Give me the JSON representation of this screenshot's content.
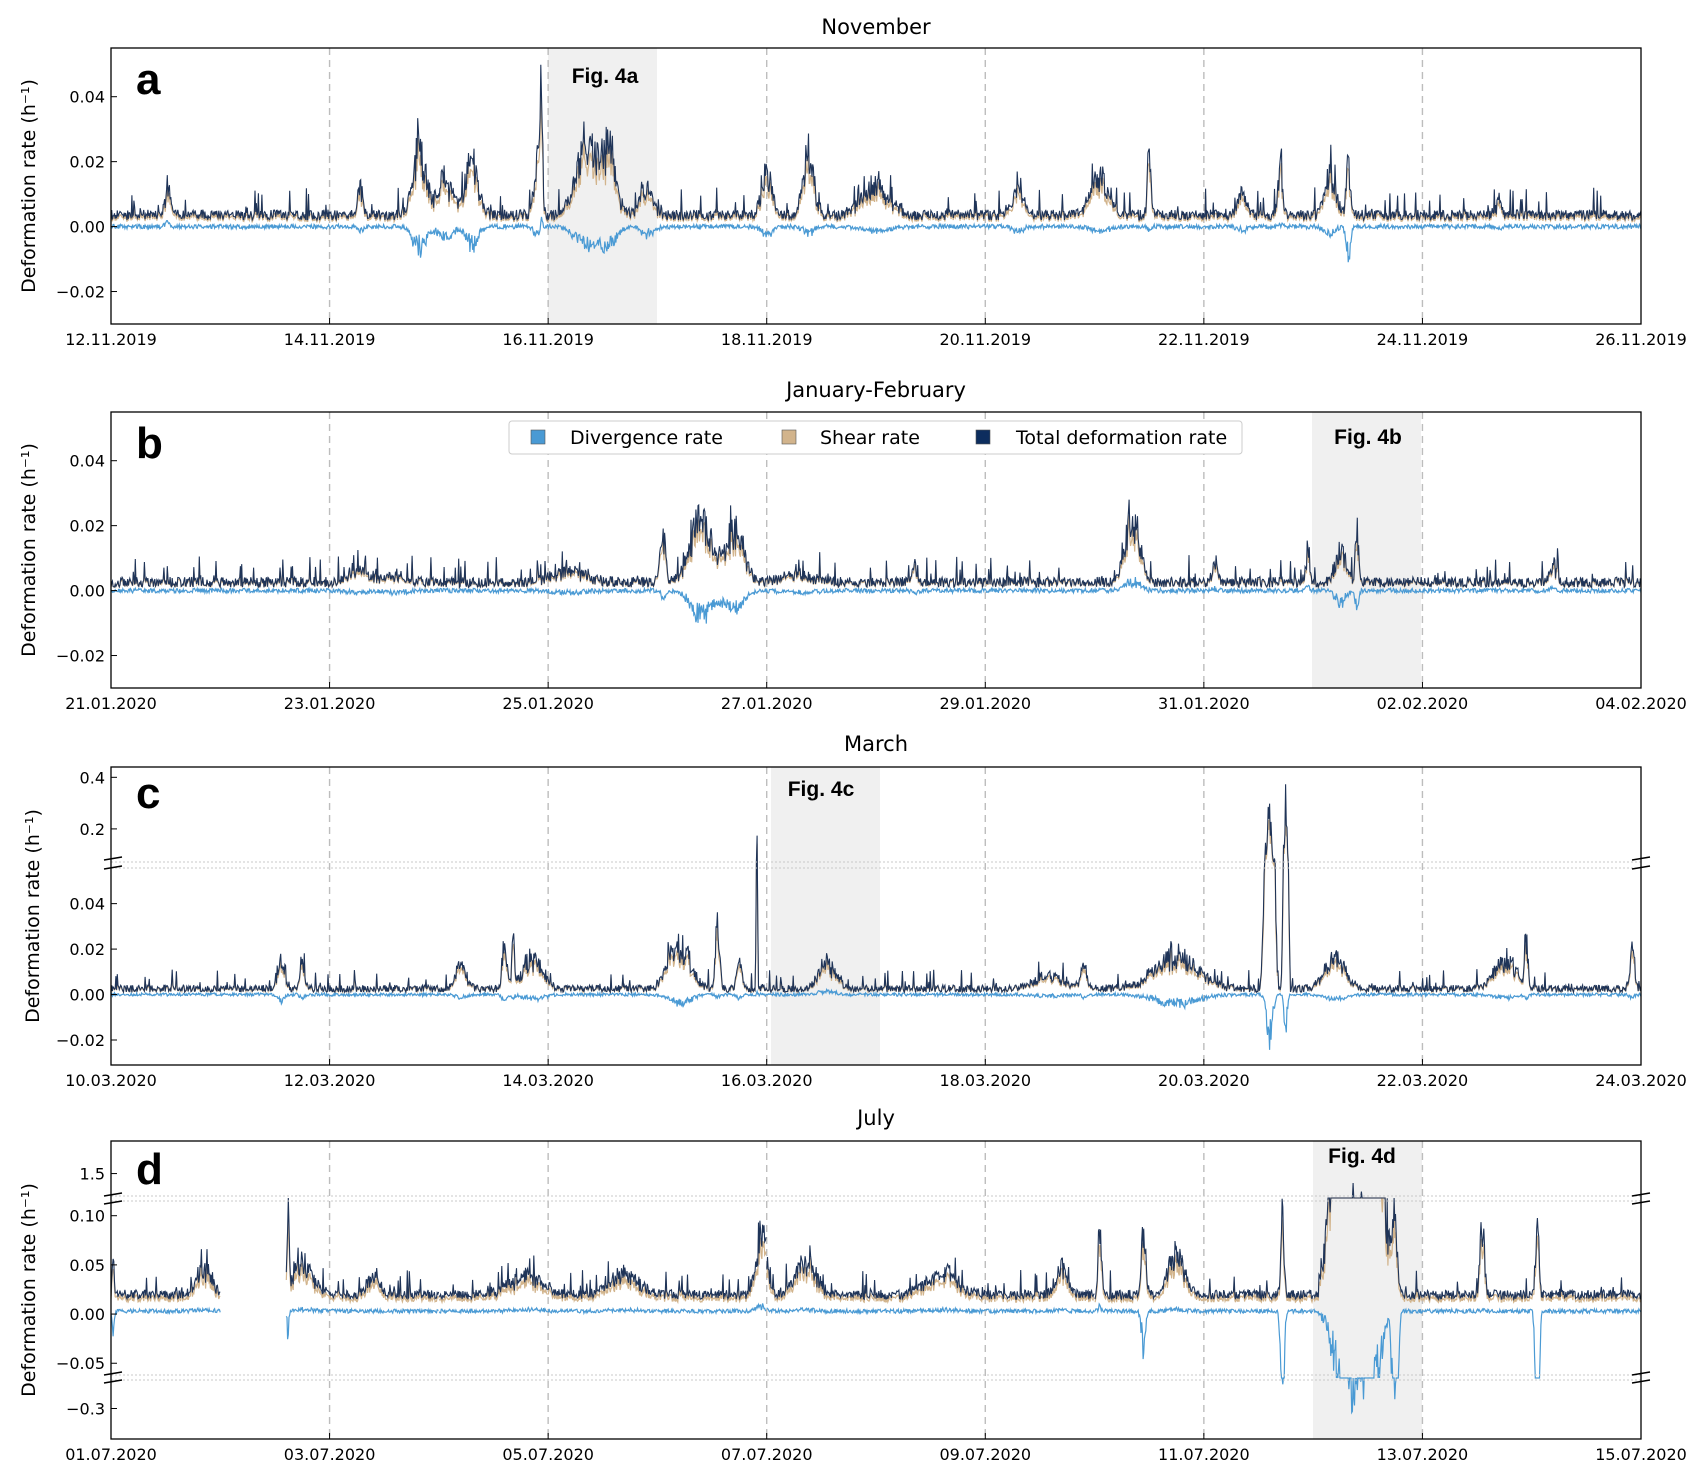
{
  "legend": {
    "items": [
      {
        "label": "Divergence rate",
        "color": "#4a9ad4"
      },
      {
        "label": "Shear rate",
        "color": "#d2b48c"
      },
      {
        "label": "Total deformation rate",
        "color": "#0d2d5e"
      }
    ]
  },
  "colors": {
    "divergence": "#4a9ad4",
    "shear": "#d2b48c",
    "total": "#1f3458",
    "grid": "#bdbdbd",
    "highlight": "#f0f0f0"
  },
  "chart_data": [
    {
      "type": "line",
      "panel_letter": "a",
      "title": "November",
      "ylabel": "Deformation rate (h⁻¹)",
      "ylim": [
        -0.03,
        0.055
      ],
      "x_range": [
        "12.11.2019",
        "26.11.2019"
      ],
      "x_ticks": [
        "12.11.2019",
        "14.11.2019",
        "16.11.2019",
        "18.11.2019",
        "20.11.2019",
        "22.11.2019",
        "24.11.2019",
        "26.11.2019"
      ],
      "y_ticks": [
        {
          "value": 0.04,
          "label": "0.04"
        },
        {
          "value": 0.02,
          "label": "0.02"
        },
        {
          "value": 0.0,
          "label": "0.00"
        },
        {
          "value": -0.02,
          "label": "−0.02"
        }
      ],
      "highlight": {
        "start": 4.0,
        "end": 5.0,
        "label": "Fig. 4a"
      },
      "baseline": {
        "div": 0.0,
        "shear": 0.0015,
        "total": 0.002
      },
      "segments": [],
      "events": [
        {
          "t": 0.52,
          "w": 0.05,
          "total": 0.014,
          "div": 0.002
        },
        {
          "t": 2.28,
          "w": 0.05,
          "total": 0.012,
          "div": -0.002
        },
        {
          "t": 2.82,
          "w": 0.12,
          "total": 0.028,
          "div": -0.01
        },
        {
          "t": 3.05,
          "w": 0.15,
          "total": 0.016,
          "div": -0.005
        },
        {
          "t": 3.3,
          "w": 0.12,
          "total": 0.024,
          "div": -0.008
        },
        {
          "t": 3.9,
          "w": 0.06,
          "total": 0.026,
          "div": -0.004
        },
        {
          "t": 3.94,
          "w": 0.02,
          "total": 0.054,
          "div": 0.004
        },
        {
          "t": 4.35,
          "w": 0.2,
          "total": 0.028,
          "div": -0.008
        },
        {
          "t": 4.55,
          "w": 0.15,
          "total": 0.026,
          "div": -0.009
        },
        {
          "t": 4.9,
          "w": 0.12,
          "total": 0.014,
          "div": -0.004
        },
        {
          "t": 6.0,
          "w": 0.1,
          "total": 0.018,
          "div": -0.004
        },
        {
          "t": 6.38,
          "w": 0.1,
          "total": 0.027,
          "div": -0.003
        },
        {
          "t": 7.0,
          "w": 0.25,
          "total": 0.014,
          "div": -0.002
        },
        {
          "t": 8.3,
          "w": 0.1,
          "total": 0.014,
          "div": -0.002
        },
        {
          "t": 9.05,
          "w": 0.18,
          "total": 0.018,
          "div": -0.002
        },
        {
          "t": 9.5,
          "w": 0.03,
          "total": 0.03,
          "div": -0.002
        },
        {
          "t": 10.35,
          "w": 0.08,
          "total": 0.012,
          "div": -0.002
        },
        {
          "t": 10.7,
          "w": 0.04,
          "total": 0.024,
          "div": 0.001
        },
        {
          "t": 11.15,
          "w": 0.1,
          "total": 0.018,
          "div": -0.003
        },
        {
          "t": 11.32,
          "w": 0.04,
          "total": 0.022,
          "div": -0.013
        },
        {
          "t": 12.7,
          "w": 0.04,
          "total": 0.01,
          "div": -0.001
        }
      ]
    },
    {
      "type": "line",
      "panel_letter": "b",
      "title": "January-February",
      "ylabel": "Deformation rate (h⁻¹)",
      "ylim": [
        -0.03,
        0.055
      ],
      "x_range": [
        "21.01.2020",
        "04.02.2020"
      ],
      "x_ticks": [
        "21.01.2020",
        "23.01.2020",
        "25.01.2020",
        "27.01.2020",
        "29.01.2020",
        "31.01.2020",
        "02.02.2020",
        "04.02.2020"
      ],
      "y_ticks": [
        {
          "value": 0.04,
          "label": "0.04"
        },
        {
          "value": 0.02,
          "label": "0.02"
        },
        {
          "value": 0.0,
          "label": "0.00"
        },
        {
          "value": -0.02,
          "label": "−0.02"
        }
      ],
      "highlight": {
        "start": 11.0,
        "end": 12.0,
        "label": "Fig. 4b"
      },
      "baseline": {
        "div": 0.0,
        "shear": 0.001,
        "total": 0.001
      },
      "segments": [],
      "events": [
        {
          "t": 2.25,
          "w": 0.2,
          "total": 0.005,
          "div": -0.001
        },
        {
          "t": 2.6,
          "w": 0.2,
          "total": 0.004,
          "div": -0.001
        },
        {
          "t": 4.2,
          "w": 0.3,
          "total": 0.006,
          "div": -0.001
        },
        {
          "t": 5.05,
          "w": 0.05,
          "total": 0.02,
          "div": -0.003
        },
        {
          "t": 5.4,
          "w": 0.2,
          "total": 0.026,
          "div": -0.011
        },
        {
          "t": 5.7,
          "w": 0.18,
          "total": 0.022,
          "div": -0.008
        },
        {
          "t": 6.3,
          "w": 0.3,
          "total": 0.004,
          "div": -0.001
        },
        {
          "t": 7.35,
          "w": 0.06,
          "total": 0.008,
          "div": -0.001
        },
        {
          "t": 9.35,
          "w": 0.14,
          "total": 0.027,
          "div": 0.004
        },
        {
          "t": 10.1,
          "w": 0.05,
          "total": 0.009,
          "div": 0.001
        },
        {
          "t": 10.95,
          "w": 0.04,
          "total": 0.012,
          "div": 0.002
        },
        {
          "t": 11.25,
          "w": 0.1,
          "total": 0.014,
          "div": -0.006
        },
        {
          "t": 11.4,
          "w": 0.03,
          "total": 0.025,
          "div": -0.009
        },
        {
          "t": 13.2,
          "w": 0.06,
          "total": 0.008,
          "div": 0.001
        }
      ]
    },
    {
      "type": "line",
      "panel_letter": "c",
      "title": "March",
      "ylabel": "Deformation rate (h⁻¹)",
      "broken_axis": true,
      "ylim_lower": [
        -0.031,
        0.057
      ],
      "ylim_upper": [
        0.06,
        0.44
      ],
      "x_range": [
        "10.03.2020",
        "24.03.2020"
      ],
      "x_ticks": [
        "10.03.2020",
        "12.03.2020",
        "14.03.2020",
        "16.03.2020",
        "18.03.2020",
        "20.03.2020",
        "22.03.2020",
        "24.03.2020"
      ],
      "y_ticks_upper": [
        {
          "value": 0.4,
          "label": "0.4"
        },
        {
          "value": 0.2,
          "label": "0.2"
        }
      ],
      "y_ticks": [
        {
          "value": 0.04,
          "label": "0.04"
        },
        {
          "value": 0.02,
          "label": "0.02"
        },
        {
          "value": 0.0,
          "label": "0.00"
        },
        {
          "value": -0.02,
          "label": "−0.02"
        }
      ],
      "highlight": {
        "start": 6.0,
        "end": 7.0,
        "label": "Fig. 4c"
      },
      "baseline": {
        "div": 0.0,
        "shear": 0.001,
        "total": 0.001
      },
      "segments": [],
      "events": [
        {
          "t": 1.55,
          "w": 0.06,
          "total": 0.017,
          "div": -0.004
        },
        {
          "t": 1.75,
          "w": 0.04,
          "total": 0.016,
          "div": -0.003
        },
        {
          "t": 3.2,
          "w": 0.1,
          "total": 0.014,
          "div": -0.002
        },
        {
          "t": 3.6,
          "w": 0.05,
          "total": 0.022,
          "div": -0.003
        },
        {
          "t": 3.68,
          "w": 0.02,
          "total": 0.042,
          "div": -0.002
        },
        {
          "t": 3.85,
          "w": 0.2,
          "total": 0.018,
          "div": -0.003
        },
        {
          "t": 5.2,
          "w": 0.2,
          "total": 0.027,
          "div": -0.006
        },
        {
          "t": 5.55,
          "w": 0.04,
          "total": 0.041,
          "div": -0.002
        },
        {
          "t": 5.75,
          "w": 0.04,
          "total": 0.024,
          "div": -0.003
        },
        {
          "t": 5.91,
          "w": 0.01,
          "total": 0.22,
          "div": 0.002
        },
        {
          "t": 6.55,
          "w": 0.15,
          "total": 0.017,
          "div": 0.002
        },
        {
          "t": 8.6,
          "w": 0.3,
          "total": 0.008,
          "div": -0.001
        },
        {
          "t": 8.9,
          "w": 0.05,
          "total": 0.017,
          "div": -0.002
        },
        {
          "t": 9.75,
          "w": 0.4,
          "total": 0.02,
          "div": -0.006
        },
        {
          "t": 10.6,
          "w": 0.06,
          "total": 0.33,
          "div": -0.025
        },
        {
          "t": 10.75,
          "w": 0.03,
          "total": 0.42,
          "div": -0.02
        },
        {
          "t": 11.2,
          "w": 0.2,
          "total": 0.018,
          "div": -0.003
        },
        {
          "t": 12.75,
          "w": 0.2,
          "total": 0.019,
          "div": -0.002
        },
        {
          "t": 12.95,
          "w": 0.03,
          "total": 0.033,
          "div": -0.002
        },
        {
          "t": 13.92,
          "w": 0.04,
          "total": 0.025,
          "div": -0.002
        }
      ]
    },
    {
      "type": "line",
      "panel_letter": "d",
      "title": "July",
      "ylabel": "Deformation rate (h⁻¹)",
      "broken_axis_both": true,
      "ylim_top": [
        1.35,
        1.7
      ],
      "ylim_mid": [
        -0.065,
        0.118
      ],
      "ylim_bottom": [
        -0.37,
        -0.23
      ],
      "x_range": [
        "01.07.2020",
        "15.07.2020"
      ],
      "x_ticks": [
        "01.07.2020",
        "03.07.2020",
        "05.07.2020",
        "07.07.2020",
        "09.07.2020",
        "11.07.2020",
        "13.07.2020",
        "15.07.2020"
      ],
      "y_ticks_top": [
        {
          "value": 1.5,
          "label": "1.5"
        }
      ],
      "y_ticks": [
        {
          "value": 0.1,
          "label": "0.10"
        },
        {
          "value": 0.05,
          "label": "0.05"
        },
        {
          "value": 0.0,
          "label": "0.00"
        },
        {
          "value": -0.05,
          "label": "−0.05"
        }
      ],
      "y_ticks_bottom": [
        {
          "value": -0.3,
          "label": "−0.3"
        }
      ],
      "highlight": {
        "start": 11.1,
        "end": 12.1,
        "label": "Fig. 4d"
      },
      "baseline": {
        "div": 0.003,
        "shear": 0.012,
        "total": 0.015
      },
      "segments": [
        [
          0.0,
          1.0
        ],
        [
          1.6,
          3.0
        ],
        [
          3.0,
          4.0
        ],
        [
          4.0,
          5.0
        ],
        [
          5.0,
          6.0
        ],
        [
          6.0,
          7.0
        ],
        [
          7.0,
          8.0
        ],
        [
          8.0,
          9.0
        ],
        [
          9.0,
          9.8
        ],
        [
          9.8,
          11.0
        ],
        [
          11.0,
          14.0
        ]
      ],
      "events": [
        {
          "t": 0.02,
          "w": 0.02,
          "total": 0.055,
          "div": -0.025
        },
        {
          "t": 0.85,
          "w": 0.15,
          "total": 0.05,
          "div": 0.005
        },
        {
          "t": 1.62,
          "w": 0.02,
          "total": 0.12,
          "div": -0.03
        },
        {
          "t": 1.75,
          "w": 0.2,
          "total": 0.06,
          "div": 0.005
        },
        {
          "t": 2.4,
          "w": 0.1,
          "total": 0.045,
          "div": 0.003
        },
        {
          "t": 3.8,
          "w": 0.3,
          "total": 0.04,
          "div": 0.005
        },
        {
          "t": 4.7,
          "w": 0.25,
          "total": 0.045,
          "div": 0.005
        },
        {
          "t": 5.95,
          "w": 0.1,
          "total": 0.1,
          "div": 0.01
        },
        {
          "t": 6.35,
          "w": 0.2,
          "total": 0.06,
          "div": 0.005
        },
        {
          "t": 7.6,
          "w": 0.3,
          "total": 0.045,
          "div": 0.005
        },
        {
          "t": 8.7,
          "w": 0.1,
          "total": 0.055,
          "div": 0.005
        },
        {
          "t": 9.05,
          "w": 0.03,
          "total": 0.12,
          "div": 0.01
        },
        {
          "t": 9.45,
          "w": 0.04,
          "total": 0.11,
          "div": -0.05
        },
        {
          "t": 9.75,
          "w": 0.15,
          "total": 0.07,
          "div": 0.005
        },
        {
          "t": 10.72,
          "w": 0.03,
          "total": 0.12,
          "div": -0.25
        },
        {
          "t": 11.4,
          "w": 0.25,
          "total": 1.5,
          "div": -0.34
        },
        {
          "t": 11.75,
          "w": 0.04,
          "total": 0.12,
          "div": -0.3
        },
        {
          "t": 12.55,
          "w": 0.04,
          "total": 0.11,
          "div": 0.005
        },
        {
          "t": 13.05,
          "w": 0.03,
          "total": 0.115,
          "div": -0.29
        }
      ]
    }
  ]
}
